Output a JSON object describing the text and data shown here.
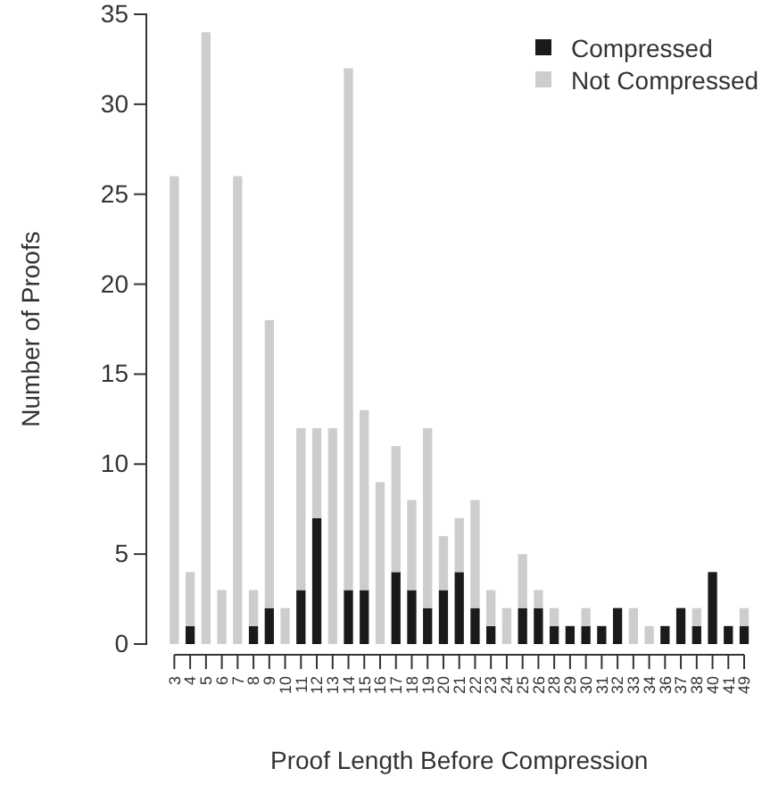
{
  "chart_data": {
    "type": "bar",
    "stacked": true,
    "xlabel": "Proof Length Before Compression",
    "ylabel": "Number of Proofs",
    "categories": [
      "3",
      "4",
      "5",
      "6",
      "7",
      "8",
      "9",
      "10",
      "11",
      "12",
      "13",
      "14",
      "15",
      "16",
      "17",
      "18",
      "19",
      "20",
      "21",
      "22",
      "23",
      "24",
      "25",
      "26",
      "28",
      "29",
      "30",
      "31",
      "32",
      "33",
      "34",
      "36",
      "37",
      "38",
      "40",
      "41",
      "49"
    ],
    "series": [
      {
        "name": "Compressed",
        "color": "#1a1a1a",
        "values": [
          0,
          1,
          0,
          0,
          0,
          1,
          2,
          0,
          3,
          7,
          0,
          3,
          3,
          0,
          4,
          3,
          2,
          3,
          4,
          2,
          1,
          0,
          2,
          2,
          1,
          1,
          1,
          1,
          2,
          0,
          0,
          1,
          2,
          1,
          4,
          1,
          1
        ]
      },
      {
        "name": "Not Compressed",
        "color": "#cdcdcd",
        "values": [
          26,
          3,
          34,
          3,
          26,
          2,
          16,
          2,
          9,
          5,
          12,
          29,
          10,
          9,
          7,
          5,
          10,
          3,
          3,
          6,
          2,
          2,
          3,
          1,
          1,
          0,
          1,
          0,
          0,
          2,
          1,
          0,
          0,
          1,
          0,
          0,
          1
        ]
      }
    ],
    "ylim": [
      0,
      35
    ],
    "yticks": [
      0,
      5,
      10,
      15,
      20,
      25,
      30,
      35
    ],
    "legend": "top right"
  }
}
